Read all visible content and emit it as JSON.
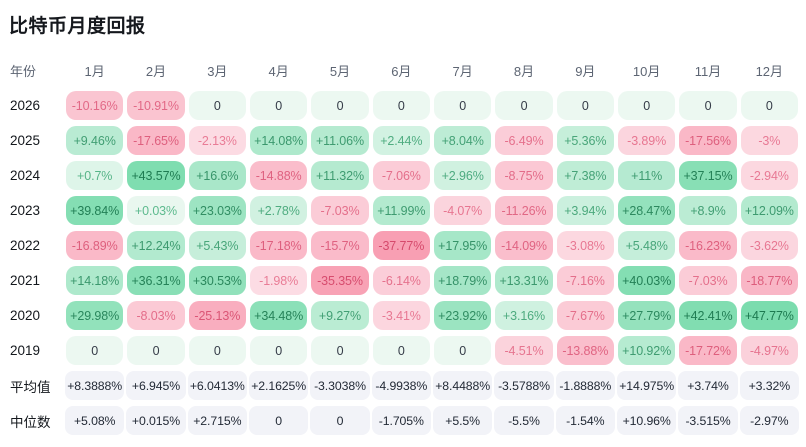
{
  "chart_data": {
    "type": "heatmap",
    "title": "比特币月度回报",
    "row_label_header": "年份",
    "x_labels": [
      "1月",
      "2月",
      "3月",
      "4月",
      "5月",
      "6月",
      "7月",
      "8月",
      "9月",
      "10月",
      "11月",
      "12月"
    ],
    "rows": [
      {
        "label": "2026",
        "values": [
          "-10.16%",
          "-10.91%",
          "0",
          "0",
          "0",
          "0",
          "0",
          "0",
          "0",
          "0",
          "0",
          "0"
        ]
      },
      {
        "label": "2025",
        "values": [
          "+9.46%",
          "-17.65%",
          "-2.13%",
          "+14.08%",
          "+11.06%",
          "+2.44%",
          "+8.04%",
          "-6.49%",
          "+5.36%",
          "-3.89%",
          "-17.56%",
          "-3%"
        ]
      },
      {
        "label": "2024",
        "values": [
          "+0.7%",
          "+43.57%",
          "+16.6%",
          "-14.88%",
          "+11.32%",
          "-7.06%",
          "+2.96%",
          "-8.75%",
          "+7.38%",
          "+11%",
          "+37.15%",
          "-2.94%"
        ]
      },
      {
        "label": "2023",
        "values": [
          "+39.84%",
          "+0.03%",
          "+23.03%",
          "+2.78%",
          "-7.03%",
          "+11.99%",
          "-4.07%",
          "-11.26%",
          "+3.94%",
          "+28.47%",
          "+8.9%",
          "+12.09%"
        ]
      },
      {
        "label": "2022",
        "values": [
          "-16.89%",
          "+12.24%",
          "+5.43%",
          "-17.18%",
          "-15.7%",
          "-37.77%",
          "+17.95%",
          "-14.09%",
          "-3.08%",
          "+5.48%",
          "-16.23%",
          "-3.62%"
        ]
      },
      {
        "label": "2021",
        "values": [
          "+14.18%",
          "+36.31%",
          "+30.53%",
          "-1.98%",
          "-35.35%",
          "-6.14%",
          "+18.79%",
          "+13.31%",
          "-7.16%",
          "+40.03%",
          "-7.03%",
          "-18.77%"
        ]
      },
      {
        "label": "2020",
        "values": [
          "+29.98%",
          "-8.03%",
          "-25.13%",
          "+34.48%",
          "+9.27%",
          "-3.41%",
          "+23.92%",
          "+3.16%",
          "-7.67%",
          "+27.79%",
          "+42.41%",
          "+47.77%"
        ]
      },
      {
        "label": "2019",
        "values": [
          "0",
          "0",
          "0",
          "0",
          "0",
          "0",
          "0",
          "-4.51%",
          "-13.88%",
          "+10.92%",
          "-17.72%",
          "-4.97%"
        ]
      }
    ],
    "summary_rows": [
      {
        "label": "平均值",
        "values": [
          "+8.3888%",
          "+6.945%",
          "+6.0413%",
          "+2.1625%",
          "-3.3038%",
          "-4.9938%",
          "+8.4488%",
          "-3.5788%",
          "-1.8888%",
          "+14.975%",
          "+3.74%",
          "+3.32%"
        ]
      },
      {
        "label": "中位数",
        "values": [
          "+5.08%",
          "+0.015%",
          "+2.715%",
          "0",
          "0",
          "-1.705%",
          "+5.5%",
          "-5.5%",
          "-1.54%",
          "+10.96%",
          "-3.515%",
          "-2.97%"
        ]
      }
    ],
    "color_scale": {
      "positive_bg_min": "#ecf8f1",
      "positive_bg_max": "#7bdcae",
      "positive_text_min": "#5fbc90",
      "positive_text_max": "#1d7a50",
      "negative_bg_min": "#fdeef2",
      "negative_bg_max": "#f89fb3",
      "negative_text_min": "#ef8ba3",
      "negative_text_max": "#d64a6c",
      "zero_bg": "#ecf8f1",
      "zero_text": "#353c48",
      "summary_bg": "#f2f3f8",
      "summary_text": "#232a36",
      "positive_max_value": 47,
      "negative_max_value": 38
    }
  }
}
